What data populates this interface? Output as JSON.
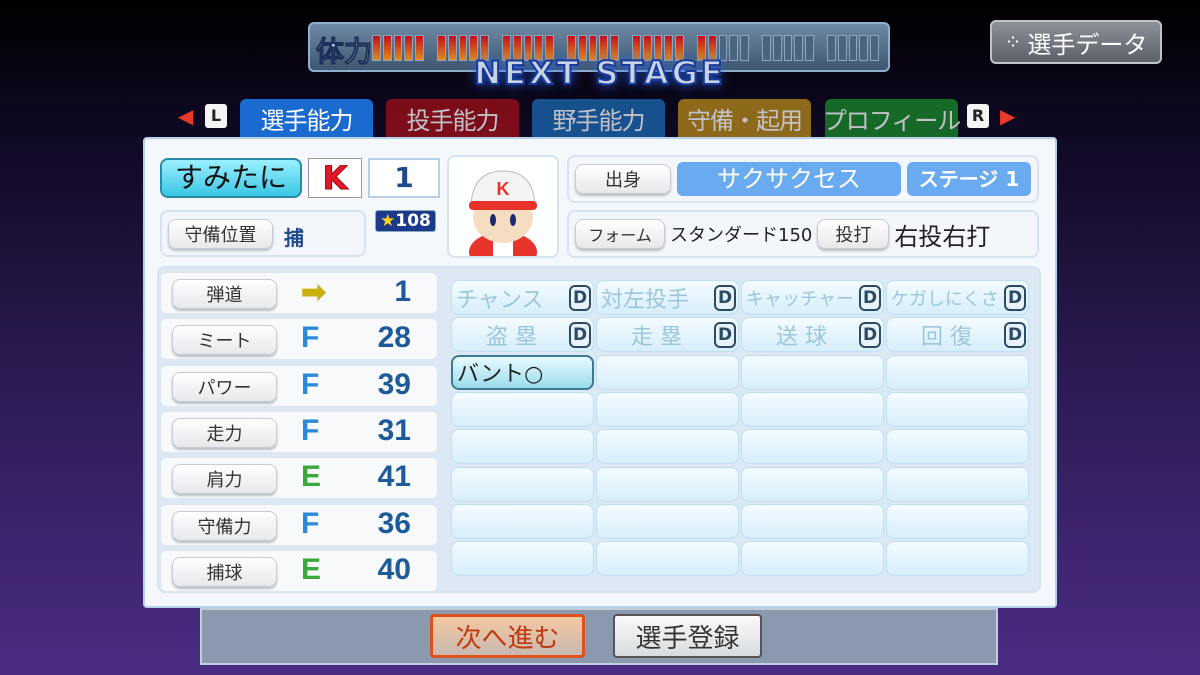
{
  "header": {
    "stamina_label": "体力",
    "stamina_ticks_filled": 27,
    "stamina_ticks_total": 40,
    "banner": "NEXT STAGE",
    "player_data_button": "選手データ"
  },
  "tabs": {
    "left_key": "L",
    "right_key": "R",
    "items": [
      {
        "label": "選手能力",
        "color": "#1a6ad0",
        "selected": true
      },
      {
        "label": "投手能力",
        "color": "#a01018"
      },
      {
        "label": "野手能力",
        "color": "#1a6ab4"
      },
      {
        "label": "守備・起用",
        "color": "#b88a1a"
      },
      {
        "label": "プロフィール",
        "color": "#1a8a2a"
      }
    ]
  },
  "player": {
    "name": "すみたに",
    "team_logo": "K",
    "number": "1",
    "position_label": "守備位置",
    "position": "捕",
    "rating": "108",
    "origin_label": "出身",
    "origin": "サクサクセス",
    "stage": "ステージ 1",
    "form_label": "フォーム",
    "form": "スタンダード150",
    "throw_bat_label": "投打",
    "throw_bat": "右投右打"
  },
  "stats": [
    {
      "label": "弾道",
      "grade": "arrow",
      "value": "1"
    },
    {
      "label": "ミート",
      "grade": "F",
      "value": "28"
    },
    {
      "label": "パワー",
      "grade": "F",
      "value": "39"
    },
    {
      "label": "走力",
      "grade": "F",
      "value": "31"
    },
    {
      "label": "肩力",
      "grade": "E",
      "value": "41"
    },
    {
      "label": "守備力",
      "grade": "F",
      "value": "36"
    },
    {
      "label": "捕球",
      "grade": "E",
      "value": "40"
    }
  ],
  "grade_colors": {
    "F": "#2a8ad8",
    "E": "#3aa83a",
    "arrow": "#c8b010"
  },
  "skills": [
    {
      "label": "チャンス",
      "rank": "D"
    },
    {
      "label": "対左投手",
      "rank": "D"
    },
    {
      "label": "キャッチャー",
      "rank": "D"
    },
    {
      "label": "ケガしにくさ",
      "rank": "D"
    },
    {
      "label": "盗 塁",
      "rank": "D"
    },
    {
      "label": "走 塁",
      "rank": "D"
    },
    {
      "label": "送 球",
      "rank": "D"
    },
    {
      "label": "回 復",
      "rank": "D"
    },
    {
      "label": "バント○"
    }
  ],
  "footer": {
    "next_button": "次へ進む",
    "register_button": "選手登録"
  }
}
